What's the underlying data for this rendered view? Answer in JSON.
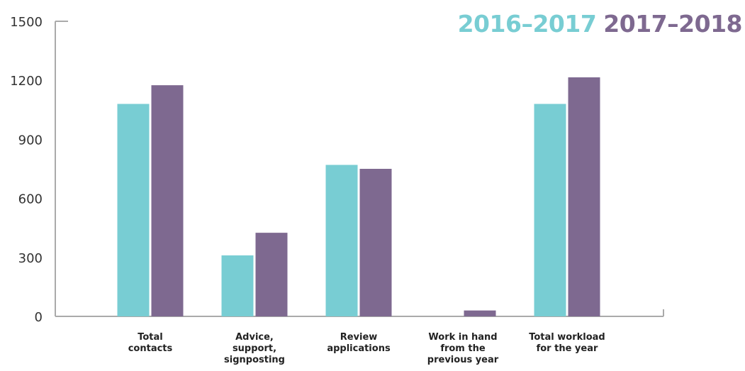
{
  "chart_data": {
    "type": "bar",
    "categories": [
      [
        "Total",
        "contacts"
      ],
      [
        "Advice,",
        "support,",
        "signposting"
      ],
      [
        "Review",
        "applications"
      ],
      [
        "Work in hand",
        "from the",
        "previous year"
      ],
      [
        "Total workload",
        "for the year"
      ]
    ],
    "series": [
      {
        "name": "2016–2017",
        "color": "#78cdd3",
        "values": [
          1080,
          310,
          770,
          null,
          1080
        ]
      },
      {
        "name": "2017–2018",
        "color": "#7e6990",
        "values": [
          1175,
          425,
          750,
          30,
          1215
        ]
      }
    ],
    "yticks": [
      0,
      300,
      600,
      900,
      1200,
      1500
    ],
    "ylim": [
      0,
      1500
    ],
    "grid": false,
    "legend_position": "top-right",
    "axis_color": "#aaaaaa"
  }
}
